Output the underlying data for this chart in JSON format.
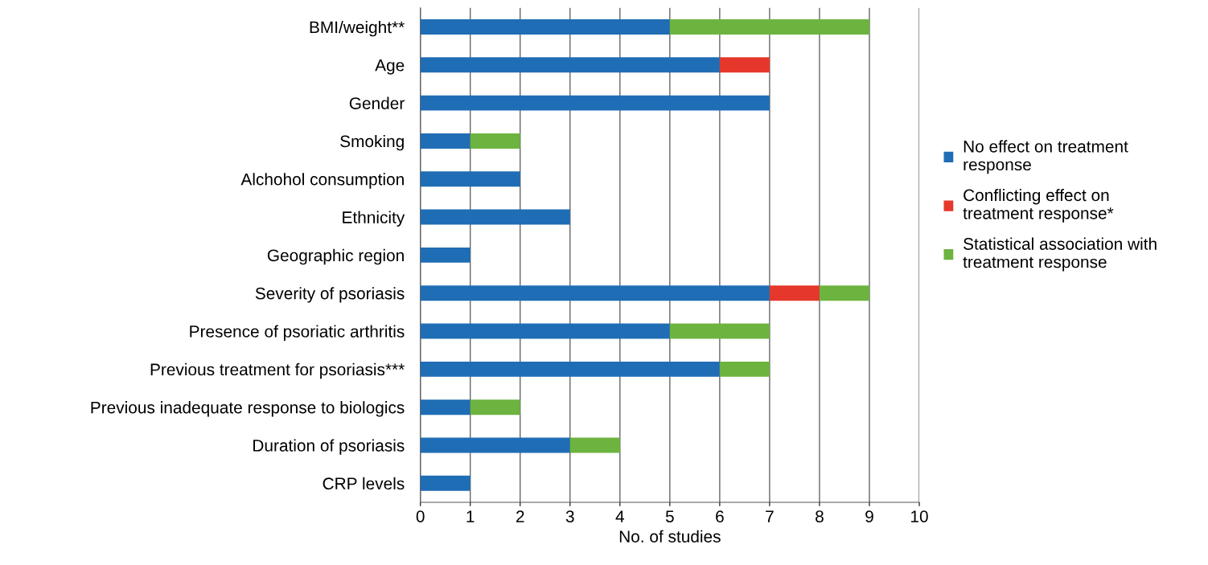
{
  "chart_data": {
    "type": "bar",
    "orientation": "horizontal",
    "stacked": true,
    "xlabel": "No. of studies",
    "categories": [
      "BMI/weight**",
      "Age",
      "Gender",
      "Smoking",
      "Alchohol consumption",
      "Ethnicity",
      "Geographic region",
      "Severity of psoriasis",
      "Presence of psoriatic arthritis",
      "Previous treatment for psoriasis***",
      "Previous inadequate response to biologics",
      "Duration of psoriasis",
      "CRP levels"
    ],
    "series": [
      {
        "name": "No effect on treatment\nresponse",
        "color": "#1f6db5",
        "values": [
          5,
          6,
          7,
          1,
          2,
          3,
          1,
          7,
          5,
          6,
          1,
          3,
          1
        ]
      },
      {
        "name": "Conflicting effect on\ntreatment response*",
        "color": "#e5372b",
        "values": [
          null,
          1,
          null,
          null,
          null,
          null,
          null,
          1,
          null,
          null,
          null,
          null,
          null
        ]
      },
      {
        "name": "Statistical association with\ntreatment response",
        "color": "#6db33f",
        "values": [
          4,
          null,
          null,
          1,
          null,
          null,
          null,
          1,
          2,
          1,
          1,
          1,
          null
        ]
      }
    ],
    "xlim": [
      0,
      10
    ],
    "xticks": [
      0,
      1,
      2,
      3,
      4,
      5,
      6,
      7,
      8,
      9,
      10
    ],
    "grid": "x",
    "legend": "right"
  }
}
